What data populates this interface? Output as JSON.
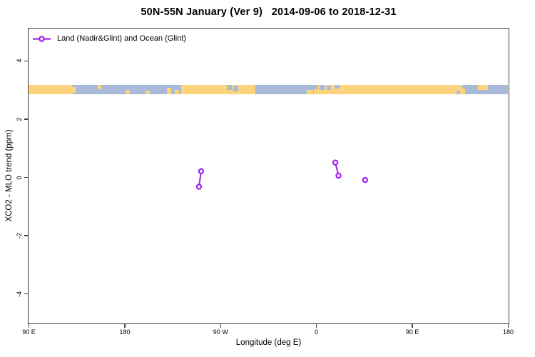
{
  "legend": {
    "label": "Land (Nadir&Glint) and Ocean (Glint)",
    "marker_color": "#A020F0"
  },
  "colors": {
    "axis": "#3f3f3f",
    "series": "#A020F0",
    "land": "#FBD47D",
    "ocean": "#A9BBD9"
  },
  "chart_data": {
    "type": "scatter",
    "title": "50N-55N January (Ver 9)   2014-09-06 to 2018-12-31",
    "xlabel": "Longitude (deg E)",
    "ylabel": "XCO2 - MLO trend (ppm)",
    "xlim": [
      90,
      540
    ],
    "ylim": [
      -5.0,
      5.1
    ],
    "grid": false,
    "legend_position": "top-left-inside",
    "x_ticks": [
      {
        "value": 90,
        "label": "90 E"
      },
      {
        "value": 180,
        "label": "180"
      },
      {
        "value": 270,
        "label": "90 W"
      },
      {
        "value": 360,
        "label": "0"
      },
      {
        "value": 450,
        "label": "90 E"
      },
      {
        "value": 540,
        "label": "180"
      }
    ],
    "y_ticks": [
      {
        "value": 4,
        "label": "4"
      },
      {
        "value": 2,
        "label": "2"
      },
      {
        "value": 0,
        "label": "0"
      },
      {
        "value": -2,
        "label": "-2"
      },
      {
        "value": -4,
        "label": "-4"
      }
    ],
    "series": [
      {
        "name": "Land (Nadir&Glint) and Ocean (Glint)",
        "color": "#A020F0",
        "marker": "open-circle",
        "polylines": [
          [
            {
              "x": 252,
              "y": 0.2
            },
            {
              "x": 250,
              "y": -0.33
            }
          ],
          [
            {
              "x": 378,
              "y": 0.5
            },
            {
              "x": 381,
              "y": 0.05
            }
          ],
          [
            {
              "x": 406,
              "y": -0.1
            }
          ]
        ]
      }
    ],
    "map_strip": {
      "description": "land/ocean map band at 50N-55N",
      "y_range": [
        2.84,
        3.16
      ],
      "land_color": "#FBD47D",
      "ocean_color": "#A9BBD9",
      "segments": [
        {
          "x0": 90,
          "x1": 540,
          "type": "ocean",
          "t": 0,
          "b": 1
        },
        {
          "x0": 90,
          "x1": 131,
          "type": "land",
          "t": 0,
          "b": 1
        },
        {
          "x0": 131,
          "x1": 134,
          "type": "land",
          "t": 0.2,
          "b": 0.8
        },
        {
          "x0": 155,
          "x1": 158,
          "type": "land",
          "t": 0,
          "b": 0.45
        },
        {
          "x0": 181,
          "x1": 185,
          "type": "land",
          "t": 0.55,
          "b": 0.9
        },
        {
          "x0": 200,
          "x1": 204,
          "type": "land",
          "t": 0.6,
          "b": 0.95
        },
        {
          "x0": 220,
          "x1": 224,
          "type": "land",
          "t": 0.3,
          "b": 1
        },
        {
          "x0": 227,
          "x1": 231,
          "type": "land",
          "t": 0.5,
          "b": 1
        },
        {
          "x0": 233,
          "x1": 303,
          "type": "land",
          "t": 0,
          "b": 1
        },
        {
          "x0": 276,
          "x1": 281,
          "type": "ocean",
          "t": 0,
          "b": 0.55
        },
        {
          "x0": 282,
          "x1": 287,
          "type": "ocean",
          "t": 0.1,
          "b": 0.7
        },
        {
          "x0": 351,
          "x1": 357,
          "type": "land",
          "t": 0.5,
          "b": 1
        },
        {
          "x0": 358,
          "x1": 492,
          "type": "land",
          "t": 0,
          "b": 1
        },
        {
          "x0": 358,
          "x1": 362,
          "type": "ocean",
          "t": 0,
          "b": 0.45
        },
        {
          "x0": 363,
          "x1": 368,
          "type": "ocean",
          "t": 0,
          "b": 0.5
        },
        {
          "x0": 370,
          "x1": 374,
          "type": "ocean",
          "t": 0.1,
          "b": 0.55
        },
        {
          "x0": 377,
          "x1": 382,
          "type": "ocean",
          "t": 0,
          "b": 0.4
        },
        {
          "x0": 492,
          "x1": 497,
          "type": "land",
          "t": 0,
          "b": 0.6
        },
        {
          "x0": 495,
          "x1": 500,
          "type": "land",
          "t": 0.4,
          "b": 1
        },
        {
          "x0": 512,
          "x1": 521,
          "type": "land",
          "t": 0,
          "b": 0.5
        }
      ]
    }
  }
}
